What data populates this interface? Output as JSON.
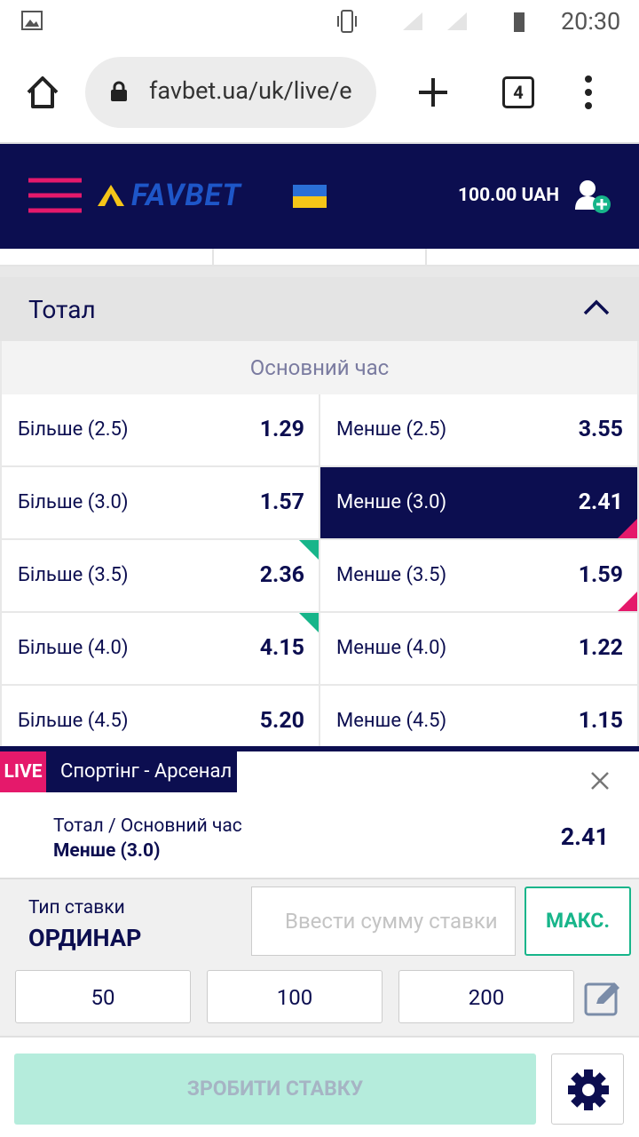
{
  "status_bar": {
    "time": "20:30"
  },
  "browser": {
    "url": "favbet.ua/uk/live/e",
    "tab_count": 4
  },
  "header": {
    "logo": "FAVBET",
    "balance": "100.00 UAH"
  },
  "market": {
    "title": "Тотал",
    "period": "Основний час",
    "rows": [
      [
        {
          "label": "Більше (2.5)",
          "odds": "1.29"
        },
        {
          "label": "Менше (2.5)",
          "odds": "3.55"
        }
      ],
      [
        {
          "label": "Більше (3.0)",
          "odds": "1.57"
        },
        {
          "label": "Менше (3.0)",
          "odds": "2.41",
          "selected": true,
          "trend": "down"
        }
      ],
      [
        {
          "label": "Більше (3.5)",
          "odds": "2.36",
          "trend": "up"
        },
        {
          "label": "Менше (3.5)",
          "odds": "1.59",
          "trend": "down"
        }
      ],
      [
        {
          "label": "Більше (4.0)",
          "odds": "4.15",
          "trend": "up"
        },
        {
          "label": "Менше (4.0)",
          "odds": "1.22"
        }
      ],
      [
        {
          "label": "Більше (4.5)",
          "odds": "5.20"
        },
        {
          "label": "Менше (4.5)",
          "odds": "1.15"
        }
      ]
    ]
  },
  "betslip": {
    "live_badge": "LIVE",
    "match": "Спортінг - Арсенал",
    "market": "Тотал / Основний час",
    "selection": "Менше (3.0)",
    "odds": "2.41",
    "bet_type_label": "Тип ставки",
    "bet_type": "ОРДИНАР",
    "stake_placeholder": "Ввести сумму ставки",
    "max_button": "МАКС.",
    "quick_stakes": [
      50,
      100,
      200
    ],
    "submit": "ЗРОБИТИ СТАВКУ"
  }
}
